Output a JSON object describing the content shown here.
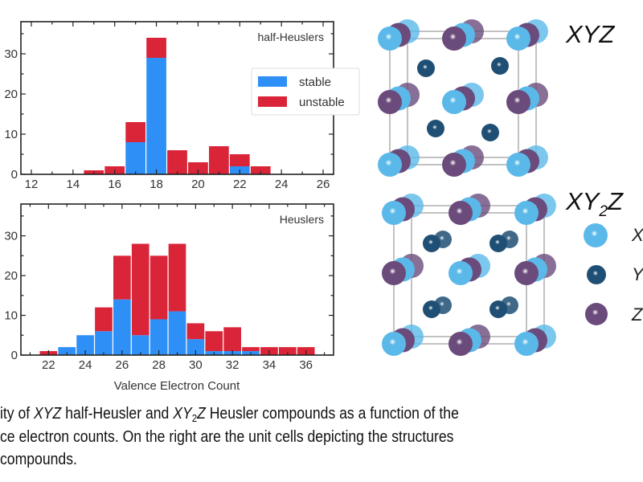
{
  "chart_data": [
    {
      "type": "bar",
      "stacked": true,
      "panel_label": "half-Heuslers",
      "x": [
        15,
        16,
        17,
        18,
        19,
        20,
        21,
        22,
        23
      ],
      "series": [
        {
          "name": "stable",
          "color": "#2E90F6",
          "values": [
            0,
            0,
            8,
            29,
            0,
            0,
            0,
            2,
            0
          ]
        },
        {
          "name": "unstable",
          "color": "#DA2539",
          "values": [
            1,
            2,
            5,
            5,
            6,
            3,
            7,
            3,
            2
          ]
        }
      ],
      "xticks": [
        "12",
        "14",
        "16",
        "18",
        "20",
        "22",
        "24",
        "26"
      ],
      "yticks": [
        "0",
        "10",
        "20",
        "30"
      ],
      "xlim": [
        11.5,
        26.5
      ],
      "ylim": [
        0,
        38
      ],
      "xlabel": "",
      "ylabel": "",
      "legend": {
        "position": "center-right",
        "entries": [
          "stable",
          "unstable"
        ]
      },
      "grid": false
    },
    {
      "type": "bar",
      "stacked": true,
      "panel_label": "Heuslers",
      "x": [
        22,
        23,
        24,
        25,
        26,
        27,
        28,
        29,
        30,
        31,
        32,
        33,
        34,
        35,
        36
      ],
      "series": [
        {
          "name": "stable",
          "color": "#2E90F6",
          "values": [
            0,
            2,
            5,
            6,
            14,
            5,
            9,
            11,
            4,
            1,
            1,
            1,
            0,
            0,
            0
          ]
        },
        {
          "name": "unstable",
          "color": "#DA2539",
          "values": [
            1,
            0,
            0,
            6,
            11,
            23,
            16,
            17,
            4,
            5,
            6,
            1,
            2,
            2,
            2
          ]
        }
      ],
      "xticks": [
        "22",
        "24",
        "26",
        "28",
        "30",
        "32",
        "34",
        "36"
      ],
      "yticks": [
        "0",
        "10",
        "20",
        "30"
      ],
      "xlim": [
        20.5,
        37.5
      ],
      "ylim": [
        0,
        38
      ],
      "xlabel": "Valence Electron Count",
      "ylabel": "",
      "grid": false
    }
  ],
  "structures": {
    "half_heusler_title": "XYZ",
    "heusler_title": {
      "main1": "XY",
      "sub": "2",
      "main2": "Z"
    },
    "legend": [
      {
        "label": "X",
        "color": "#5BB9E9"
      },
      {
        "label": "Y",
        "color": "#1F4F74"
      },
      {
        "label": "Z",
        "color": "#6A4B7B"
      }
    ]
  },
  "caption": {
    "line1": {
      "a": "ity of ",
      "b": "XYZ",
      "c": " half-Heusler and ",
      "d": "XY",
      "e": "2",
      "f": "Z",
      "g": " Heusler compounds as a function of the"
    },
    "line2": "ce electron counts. On the right are the unit cells depicting the structures",
    "line3": " compounds."
  }
}
